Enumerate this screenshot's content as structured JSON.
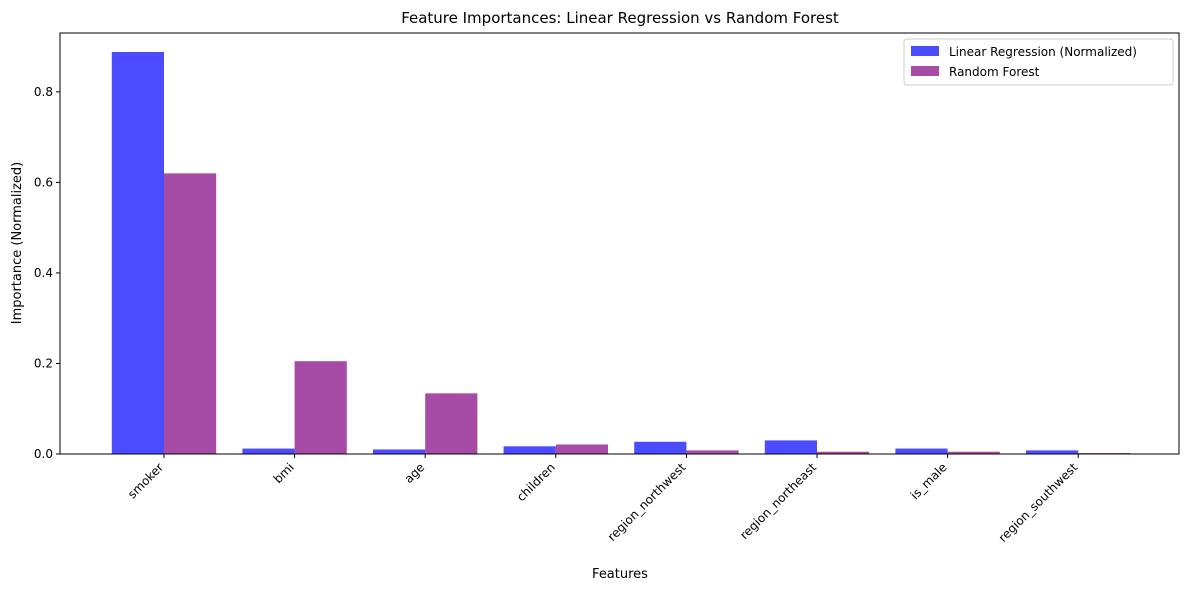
{
  "chart_data": {
    "type": "bar",
    "title": "Feature Importances: Linear Regression vs Random Forest",
    "xlabel": "Features",
    "ylabel": "Importance (Normalized)",
    "ylim": [
      0,
      0.93
    ],
    "yticks": [
      0.0,
      0.2,
      0.4,
      0.6,
      0.8
    ],
    "ytick_labels": [
      "0.0",
      "0.2",
      "0.4",
      "0.6",
      "0.8"
    ],
    "grid": false,
    "legend_position": "top-right",
    "categories": [
      "smoker",
      "bmi",
      "age",
      "children",
      "region_northwest",
      "region_northeast",
      "is_male",
      "region_southwest"
    ],
    "series": [
      {
        "name": "Linear Regression (Normalized)",
        "color": "#4b4bff",
        "values": [
          0.888,
          0.012,
          0.01,
          0.017,
          0.027,
          0.03,
          0.012,
          0.008
        ]
      },
      {
        "name": "Random Forest",
        "color": "#a64ca6",
        "values": [
          0.62,
          0.205,
          0.134,
          0.021,
          0.008,
          0.005,
          0.005,
          0.002
        ]
      }
    ]
  }
}
